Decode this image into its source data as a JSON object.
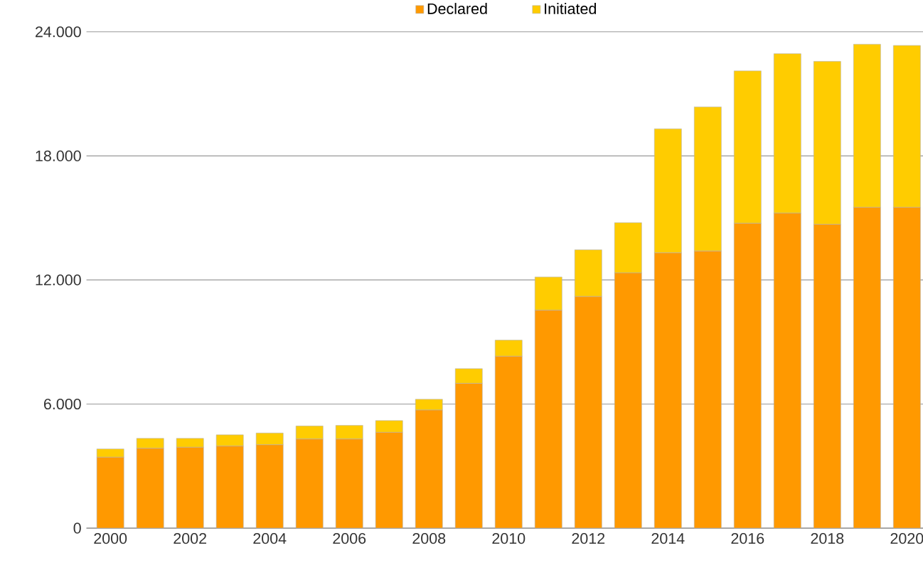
{
  "chart_data": {
    "type": "bar",
    "stacked": true,
    "categories": [
      "2000",
      null,
      "2002",
      null,
      "2004",
      null,
      "2006",
      null,
      "2008",
      null,
      "2010",
      null,
      "2012",
      null,
      "2014",
      null,
      "2016",
      null,
      "2018",
      null,
      "2020"
    ],
    "series": [
      {
        "name": "Declared",
        "color": "#ff9900",
        "values": [
          3430,
          3860,
          3910,
          3970,
          4030,
          4310,
          4310,
          4630,
          5710,
          7000,
          8310,
          10540,
          11200,
          12340,
          13310,
          13400,
          14740,
          15230,
          14690,
          15510,
          15510
        ]
      },
      {
        "name": "Initiated",
        "color": "#ffcc00",
        "values": [
          400,
          480,
          430,
          540,
          570,
          630,
          660,
          570,
          520,
          710,
          780,
          1600,
          2260,
          2430,
          6000,
          6970,
          7370,
          7710,
          7880,
          7890,
          7830
        ]
      }
    ],
    "ylim": [
      0,
      24000
    ],
    "yticks": [
      {
        "value": 0,
        "label": "0"
      },
      {
        "value": 6000,
        "label": "6.000"
      },
      {
        "value": 12000,
        "label": "12.000"
      },
      {
        "value": 18000,
        "label": "18.000"
      },
      {
        "value": 24000,
        "label": "24.000"
      }
    ],
    "grid": "y",
    "legend": "top"
  }
}
